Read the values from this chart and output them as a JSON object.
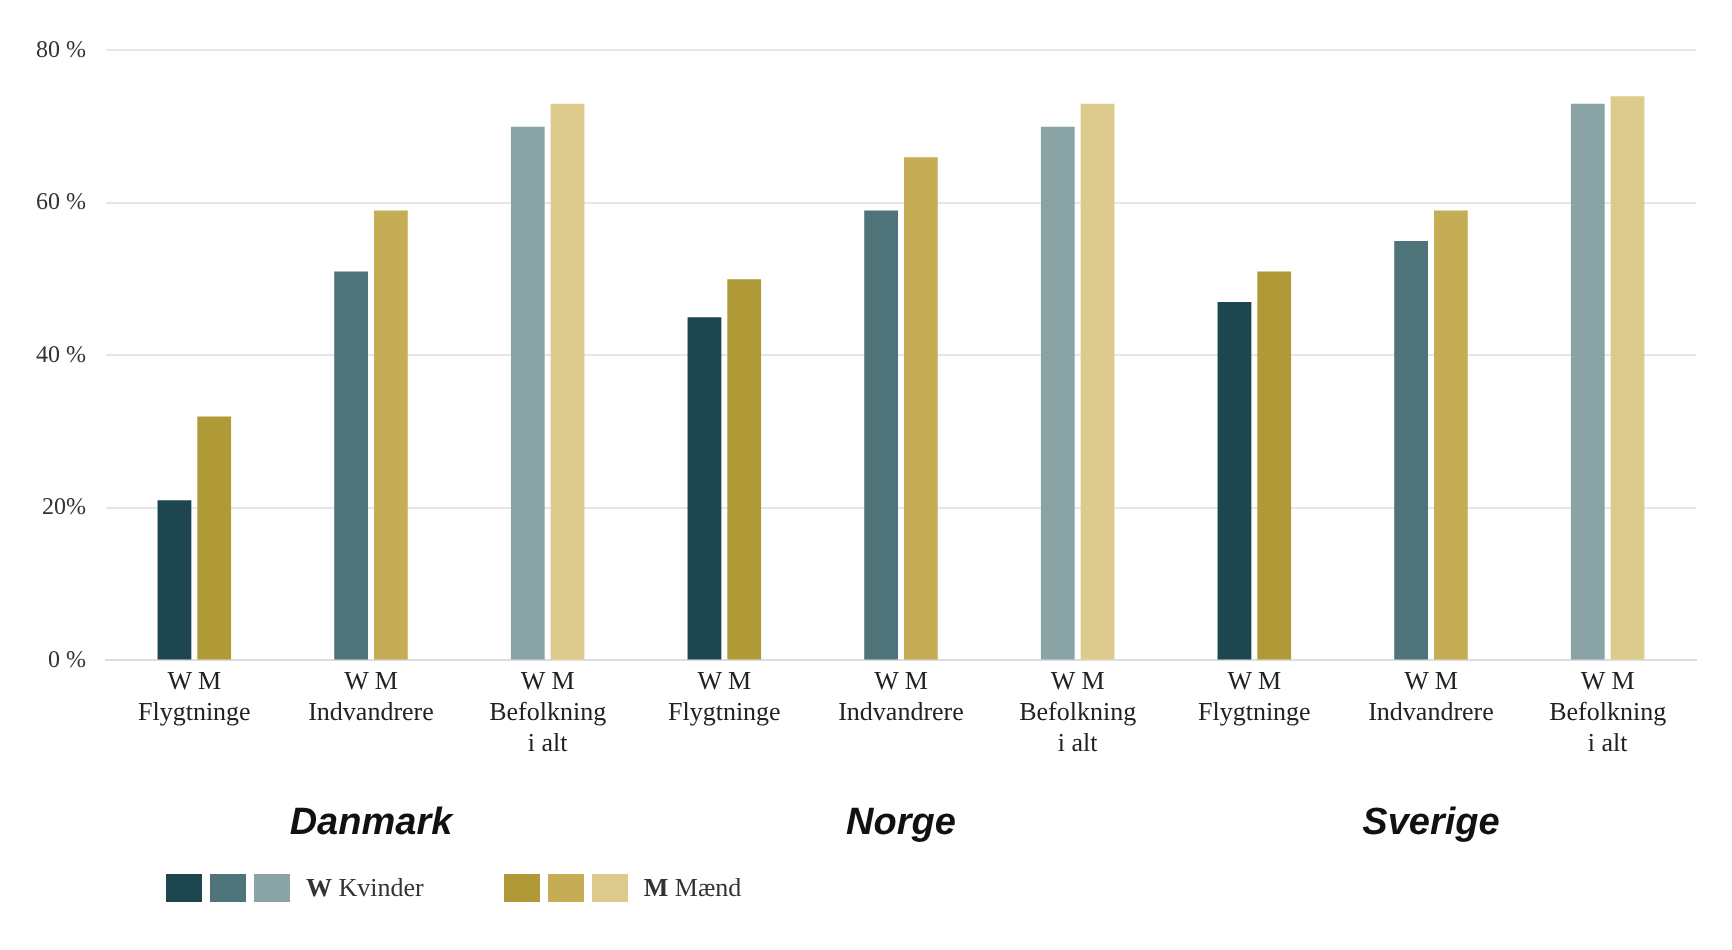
{
  "chart_data": {
    "type": "bar",
    "categories": [
      "W M\nFlygtninge",
      "W M\nIndvandrere",
      "W M\nBefolkning\ni alt",
      "W M\nFlygtninge",
      "W M\nIndvandrere",
      "W M\nBefolkning\ni alt",
      "W M\nFlygtninge",
      "W M\nIndvandrere",
      "W M\nBefolkning\ni alt"
    ],
    "series": [
      {
        "name": "W Kvinder",
        "colors": [
          "#1e4650",
          "#4e7479",
          "#8aa4a6",
          "#1e4650",
          "#4e7479",
          "#8aa4a6",
          "#1e4650",
          "#4e7479",
          "#8aa4a6"
        ],
        "values": [
          21,
          51,
          70,
          45,
          59,
          70,
          47,
          55,
          73
        ]
      },
      {
        "name": "M Mænd",
        "colors": [
          "#b09a38",
          "#c4ad55",
          "#dccb8c",
          "#b09a38",
          "#c4ad55",
          "#dccb8c",
          "#b09a38",
          "#c4ad55",
          "#dccb8c"
        ],
        "values": [
          32,
          59,
          73,
          50,
          66,
          73,
          51,
          59,
          74
        ]
      }
    ],
    "annotations": [
      "Danmark",
      "Norge",
      "Sverige"
    ],
    "ylim": [
      0,
      80
    ],
    "yticks": [
      {
        "value": 0,
        "label": "0 %"
      },
      {
        "value": 20,
        "label": "20%"
      },
      {
        "value": 40,
        "label": "40 %"
      },
      {
        "value": 60,
        "label": "60 %"
      },
      {
        "value": 80,
        "label": "80 %"
      }
    ],
    "grid": "y",
    "legend": "bottom left"
  }
}
